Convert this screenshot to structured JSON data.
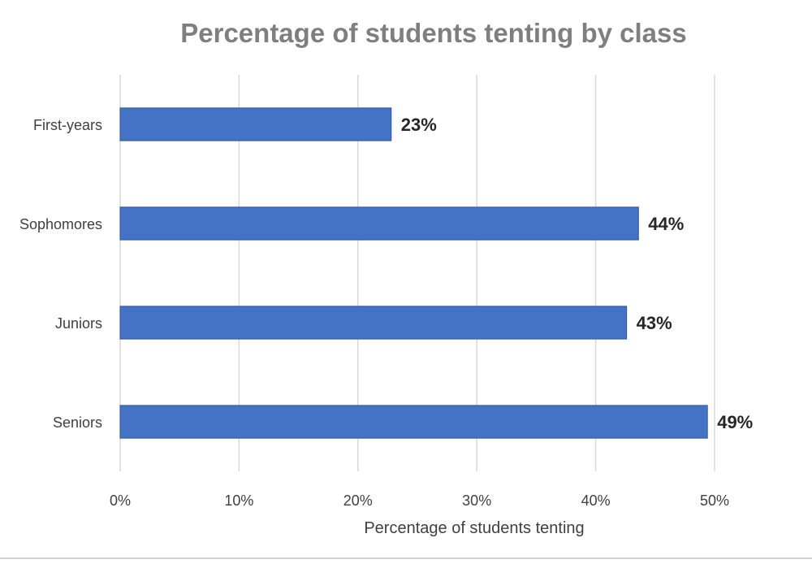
{
  "chart_data": {
    "type": "bar",
    "orientation": "horizontal",
    "title": "Percentage of students tenting by class",
    "xlabel": "Percentage of students tenting",
    "ylabel": "",
    "categories": [
      "First-years",
      "Sophomores",
      "Juniors",
      "Seniors"
    ],
    "values": [
      0.228,
      0.436,
      0.426,
      0.494
    ],
    "data_labels": [
      "23%",
      "44%",
      "43%",
      "49%"
    ],
    "xlim": [
      0,
      0.5
    ],
    "x_ticks": [
      0,
      0.1,
      0.2,
      0.3,
      0.4,
      0.5
    ],
    "x_tick_labels": [
      "0%",
      "10%",
      "20%",
      "30%",
      "40%",
      "50%"
    ],
    "grid": true,
    "legend": "none",
    "colors": {
      "bar": "#4472C4",
      "bar_edge": "#2f5597",
      "grid": "#d9d9d9",
      "title": "#7f7f7f",
      "tick_text": "#404040",
      "data_label": "#262626"
    }
  }
}
